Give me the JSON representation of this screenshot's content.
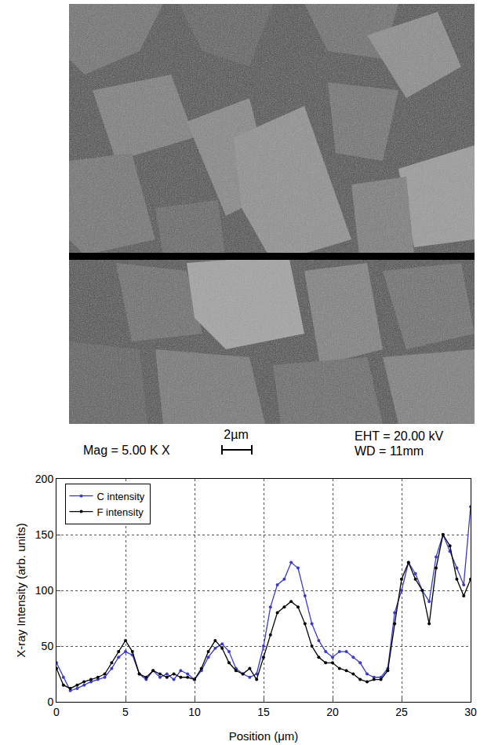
{
  "image_caption": {
    "magnification": "Mag = 5.00 K X",
    "scale": "2µm",
    "eht": "EHT = 20.00 kV",
    "wd": "WD = 11mm"
  },
  "chart_data": {
    "type": "scatter",
    "x_label": "Position (μm)",
    "y_label": "X-ray Intensity (arb. units)",
    "x": [
      0,
      0.5,
      1,
      1.5,
      2,
      2.5,
      3,
      3.5,
      4,
      4.5,
      5,
      5.5,
      6,
      6.5,
      7,
      7.5,
      8,
      8.5,
      9,
      9.5,
      10,
      10.5,
      11,
      11.5,
      12,
      12.5,
      13,
      13.5,
      14,
      14.5,
      15,
      15.5,
      16,
      16.5,
      17,
      17.5,
      18,
      18.5,
      19,
      19.5,
      20,
      20.5,
      21,
      21.5,
      22,
      22.5,
      23,
      23.5,
      24,
      24.5,
      25,
      25.5,
      26,
      26.5,
      27,
      27.5,
      28,
      28.5,
      29,
      29.5,
      30
    ],
    "series": [
      {
        "name": "C intensity",
        "color": "#3a3ac8",
        "marker": "circle",
        "line_style": "solid",
        "values": [
          35,
          22,
          10,
          12,
          15,
          18,
          20,
          22,
          30,
          40,
          45,
          42,
          25,
          20,
          28,
          22,
          25,
          20,
          28,
          25,
          20,
          28,
          40,
          48,
          52,
          45,
          30,
          25,
          22,
          25,
          50,
          85,
          105,
          110,
          125,
          120,
          95,
          70,
          55,
          45,
          40,
          45,
          45,
          40,
          35,
          25,
          22,
          22,
          30,
          80,
          100,
          125,
          115,
          100,
          90,
          130,
          150,
          135,
          120,
          105,
          175
        ]
      },
      {
        "name": "F intensity",
        "color": "#000000",
        "marker": "circle",
        "line_style": "solid",
        "values": [
          30,
          15,
          12,
          15,
          18,
          20,
          22,
          25,
          35,
          45,
          55,
          45,
          25,
          22,
          28,
          25,
          22,
          25,
          22,
          22,
          20,
          30,
          45,
          55,
          48,
          35,
          28,
          25,
          30,
          20,
          40,
          60,
          80,
          85,
          90,
          85,
          70,
          50,
          40,
          35,
          35,
          30,
          28,
          25,
          20,
          18,
          20,
          20,
          28,
          70,
          110,
          125,
          110,
          100,
          70,
          120,
          150,
          140,
          110,
          95,
          110
        ]
      }
    ],
    "xlim": [
      0,
      30
    ],
    "xticks": [
      0,
      5,
      10,
      15,
      20,
      25,
      30
    ],
    "ylim": [
      0,
      200
    ],
    "yticks": [
      0,
      50,
      100,
      150,
      200
    ],
    "grid": true,
    "legend": "upper left"
  }
}
